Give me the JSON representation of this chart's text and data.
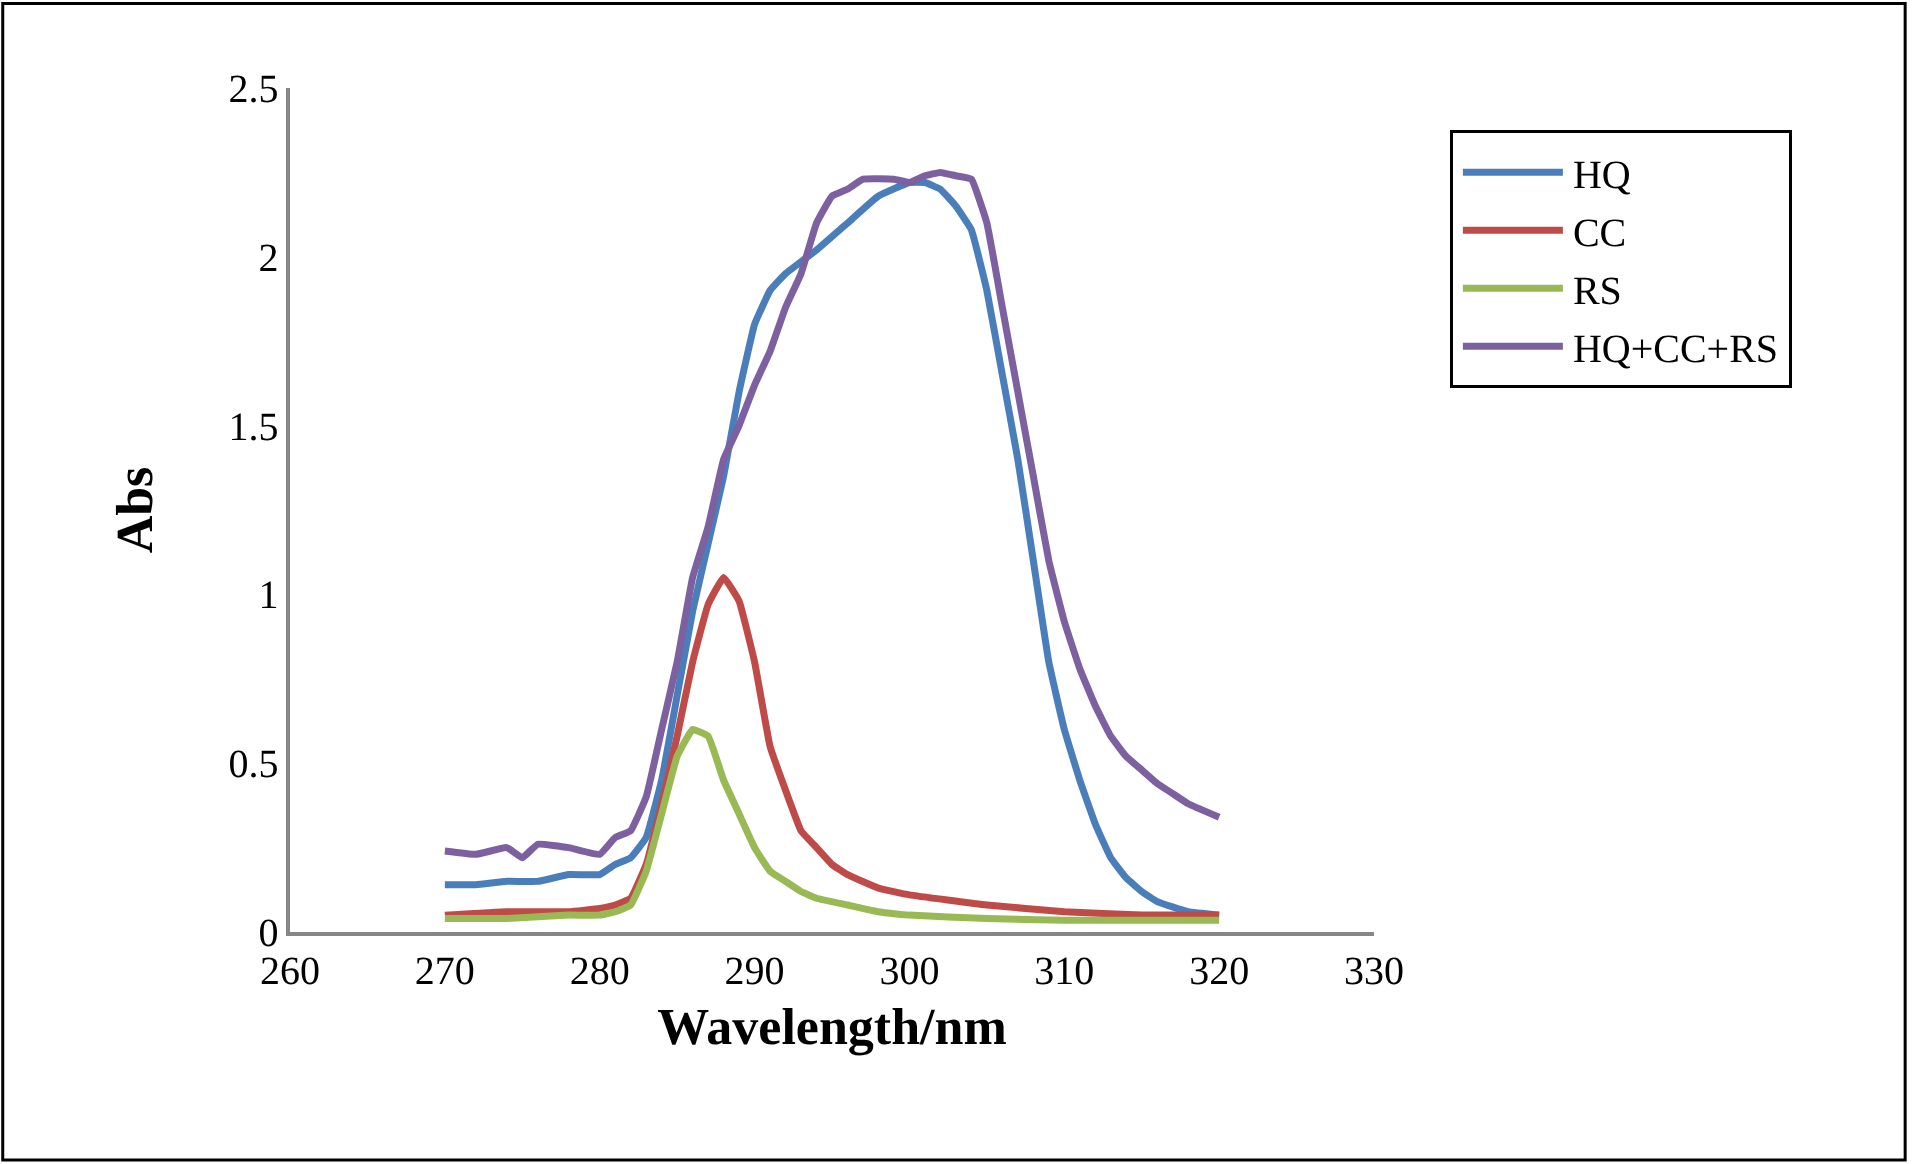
{
  "chart_data": {
    "type": "line",
    "xlabel": "Wavelength/nm",
    "ylabel": "Abs",
    "xlim": [
      260,
      330
    ],
    "xticks": [
      260,
      270,
      280,
      290,
      300,
      310,
      320,
      330
    ],
    "ylim": [
      0,
      2.5
    ],
    "yticks": [
      0,
      0.5,
      1,
      1.5,
      2,
      2.5
    ],
    "grid": false,
    "legend": "right",
    "marker": "none",
    "line_style": "solid",
    "series": [
      {
        "name": "HQ",
        "color": "#4a7ebb",
        "x": [
          270,
          272,
          274,
          276,
          278,
          280,
          281,
          282,
          283,
          284,
          285,
          286,
          287,
          288,
          289,
          290,
          291,
          292,
          294,
          296,
          298,
          300,
          301,
          302,
          303,
          304,
          305,
          306,
          307,
          308,
          309,
          310,
          311,
          312,
          313,
          314,
          315,
          316,
          318,
          320
        ],
        "values": [
          0.14,
          0.14,
          0.15,
          0.15,
          0.17,
          0.17,
          0.2,
          0.22,
          0.28,
          0.45,
          0.7,
          0.95,
          1.15,
          1.35,
          1.6,
          1.8,
          1.9,
          1.95,
          2.02,
          2.1,
          2.18,
          2.22,
          2.22,
          2.2,
          2.15,
          2.08,
          1.9,
          1.65,
          1.4,
          1.1,
          0.8,
          0.6,
          0.45,
          0.32,
          0.22,
          0.16,
          0.12,
          0.09,
          0.06,
          0.05
        ]
      },
      {
        "name": "CC",
        "color": "#be4b48",
        "x": [
          270,
          274,
          278,
          280,
          281,
          282,
          283,
          284,
          285,
          286,
          287,
          288,
          289,
          290,
          291,
          292,
          293,
          294,
          295,
          296,
          298,
          300,
          305,
          310,
          315,
          320
        ],
        "values": [
          0.05,
          0.06,
          0.06,
          0.07,
          0.08,
          0.1,
          0.2,
          0.38,
          0.58,
          0.8,
          0.97,
          1.05,
          0.98,
          0.8,
          0.55,
          0.42,
          0.3,
          0.25,
          0.2,
          0.17,
          0.13,
          0.11,
          0.08,
          0.06,
          0.05,
          0.05
        ]
      },
      {
        "name": "RS",
        "color": "#98b954",
        "x": [
          270,
          274,
          278,
          280,
          281,
          282,
          283,
          284,
          285,
          286,
          287,
          288,
          289,
          290,
          291,
          292,
          293,
          294,
          296,
          298,
          300,
          305,
          310,
          320
        ],
        "values": [
          0.04,
          0.04,
          0.05,
          0.05,
          0.06,
          0.08,
          0.18,
          0.35,
          0.52,
          0.6,
          0.58,
          0.45,
          0.35,
          0.25,
          0.18,
          0.15,
          0.12,
          0.1,
          0.08,
          0.06,
          0.05,
          0.04,
          0.035,
          0.035
        ]
      },
      {
        "name": "HQ+CC+RS",
        "color": "#7d60a0",
        "x": [
          270,
          272,
          274,
          275,
          276,
          278,
          280,
          281,
          282,
          283,
          284,
          285,
          286,
          287,
          288,
          289,
          290,
          291,
          292,
          293,
          294,
          295,
          296,
          297,
          299,
          300,
          301,
          302,
          303,
          304,
          305,
          306,
          307,
          308,
          309,
          310,
          311,
          312,
          313,
          314,
          315,
          316,
          317,
          318,
          320
        ],
        "values": [
          0.24,
          0.23,
          0.25,
          0.22,
          0.26,
          0.25,
          0.23,
          0.28,
          0.3,
          0.4,
          0.6,
          0.8,
          1.05,
          1.2,
          1.4,
          1.5,
          1.62,
          1.72,
          1.85,
          1.95,
          2.1,
          2.18,
          2.2,
          2.23,
          2.23,
          2.22,
          2.24,
          2.25,
          2.24,
          2.23,
          2.1,
          1.85,
          1.6,
          1.35,
          1.1,
          0.92,
          0.78,
          0.67,
          0.58,
          0.52,
          0.48,
          0.44,
          0.41,
          0.38,
          0.34
        ]
      }
    ]
  }
}
